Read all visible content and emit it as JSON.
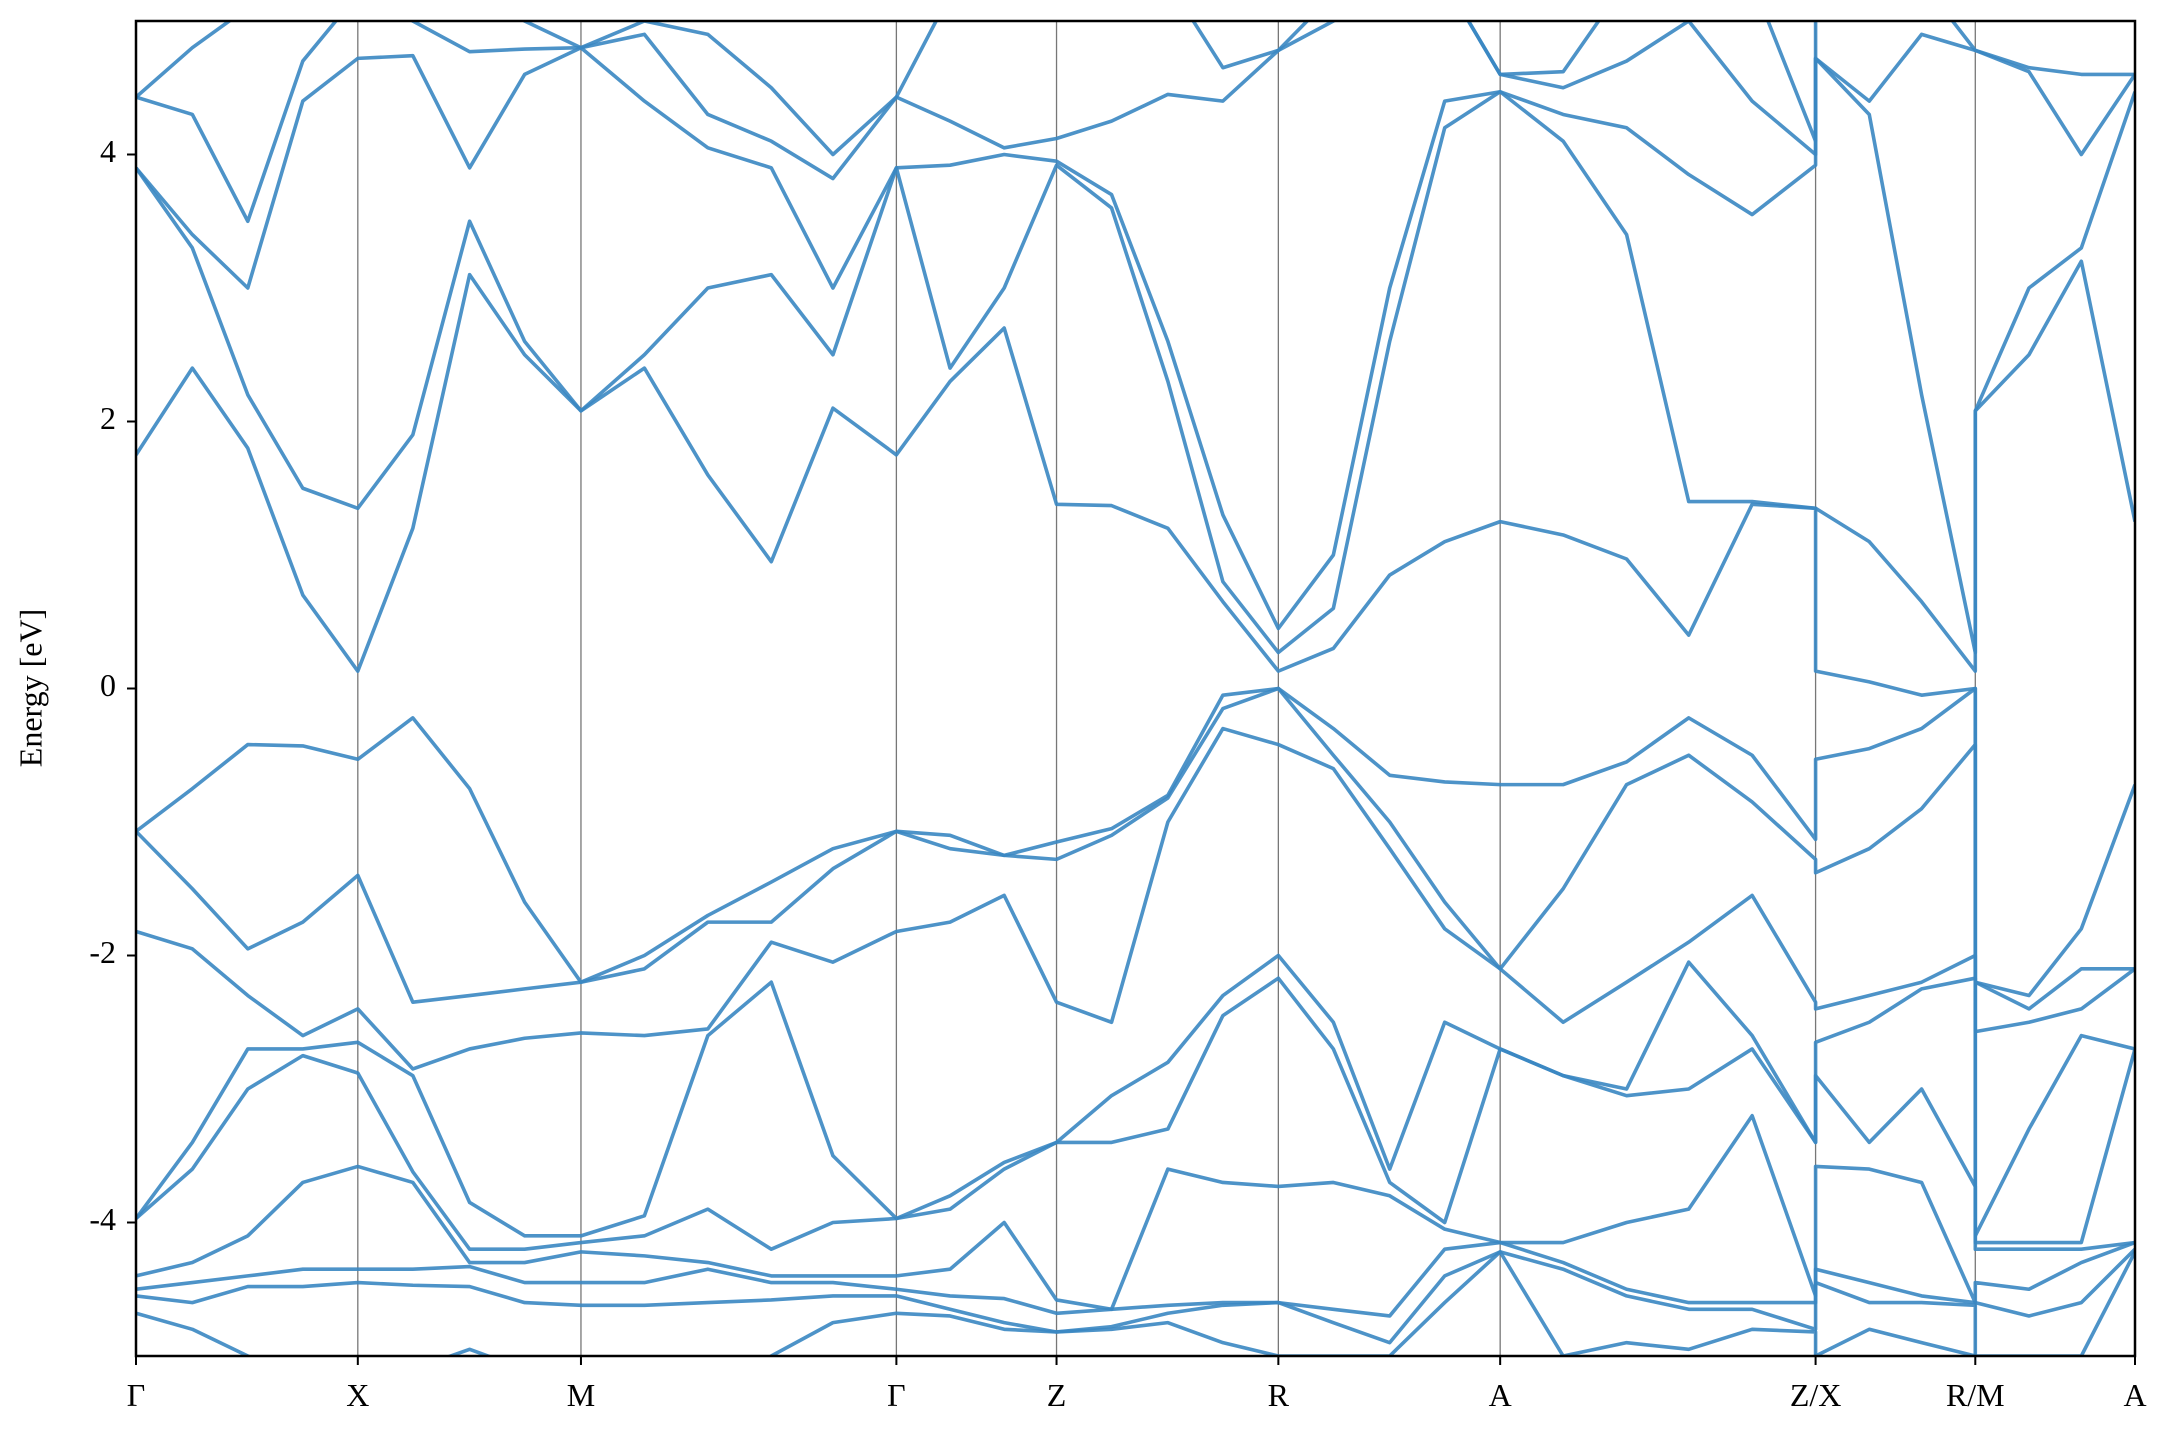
{
  "chart_data": {
    "type": "line",
    "ylabel": "Energy [eV]",
    "color": "#3a87c2",
    "xgrid": true,
    "xlim": [
      0,
      4.506
    ],
    "ylim": [
      -5,
      5
    ],
    "yticks": [
      -4,
      -2,
      0,
      2,
      4
    ],
    "xticks": [
      {
        "value": 0,
        "label": "Γ"
      },
      {
        "value": 0.5,
        "label": "X"
      },
      {
        "value": 1.003,
        "label": "M"
      },
      {
        "value": 1.714,
        "label": "Γ"
      },
      {
        "value": 2.075,
        "label": "Z"
      },
      {
        "value": 2.575,
        "label": "R"
      },
      {
        "value": 3.075,
        "label": "A"
      },
      {
        "value": 3.786,
        "label": "Z/X"
      },
      {
        "value": 4.146,
        "label": "R/M"
      },
      {
        "value": 4.506,
        "label": "A"
      }
    ],
    "x": [
      0,
      0.127,
      0.252,
      0.376,
      0.5,
      0.624,
      0.752,
      0.876,
      1.003,
      1.146,
      1.289,
      1.432,
      1.571,
      1.714,
      1.835,
      1.957,
      2.075,
      2.199,
      2.326,
      2.45,
      2.575,
      2.699,
      2.826,
      2.95,
      3.075,
      3.217,
      3.36,
      3.5,
      3.643,
      3.786,
      3.786,
      3.907,
      4.025,
      4.146,
      4.146,
      4.267,
      4.385,
      4.506
    ],
    "series": [
      {
        "values": [
          4.43,
          4.8,
          5.1,
          5.3,
          5.3,
          5.3,
          5.3,
          5.0,
          4.8,
          5.0,
          4.9,
          4.5,
          4.0,
          4.43,
          5.2,
          5.3,
          5.3,
          5.3,
          5.3,
          4.65,
          4.78,
          5.2,
          5.3,
          5.3,
          4.6,
          4.62,
          5.3,
          5.3,
          5.3,
          4.1,
          5.3,
          5.3,
          5.3,
          4.78,
          4.78,
          4.65,
          4.6,
          4.6
        ]
      },
      {
        "values": [
          4.43,
          4.3,
          3.5,
          4.7,
          5.2,
          5.0,
          4.77,
          4.79,
          4.8,
          4.9,
          4.3,
          4.1,
          3.82,
          4.43,
          4.25,
          4.05,
          4.12,
          4.25,
          4.45,
          4.4,
          4.78,
          5.0,
          5.2,
          5.3,
          4.6,
          4.5,
          4.7,
          5.0,
          4.4,
          4.0,
          4.72,
          4.4,
          4.9,
          4.78,
          4.78,
          4.62,
          4.0,
          4.6
        ]
      },
      {
        "values": [
          3.9,
          3.4,
          3.0,
          4.4,
          4.72,
          4.74,
          3.9,
          4.6,
          4.8,
          4.4,
          4.05,
          3.9,
          3.0,
          3.9,
          3.92,
          4.0,
          3.95,
          3.7,
          2.6,
          1.3,
          0.45,
          1.0,
          3.0,
          4.4,
          4.47,
          4.3,
          4.2,
          3.85,
          3.55,
          3.92,
          4.72,
          4.3,
          2.2,
          0.27,
          2.08,
          3.0,
          3.3,
          4.47
        ]
      },
      {
        "values": [
          3.9,
          3.3,
          2.2,
          1.5,
          1.35,
          1.9,
          3.5,
          2.6,
          2.08,
          2.5,
          3.0,
          3.1,
          2.5,
          3.9,
          2.4,
          3.0,
          3.92,
          3.6,
          2.3,
          0.8,
          0.27,
          0.6,
          2.6,
          4.2,
          4.47,
          4.1,
          3.4,
          1.4,
          1.4,
          1.35,
          1.35,
          1.1,
          0.65,
          0.13,
          2.08,
          2.5,
          3.2,
          1.25
        ]
      },
      {
        "values": [
          1.75,
          2.4,
          1.8,
          0.7,
          0.13,
          1.2,
          3.1,
          2.5,
          2.08,
          2.4,
          1.6,
          0.95,
          2.1,
          1.75,
          2.3,
          2.7,
          1.38,
          1.37,
          1.2,
          0.65,
          0.13,
          0.3,
          0.85,
          1.1,
          1.25,
          1.15,
          0.97,
          0.4,
          1.38,
          1.35,
          0.13,
          0.05,
          -0.05,
          0.0,
          -2.2,
          -2.3,
          -1.8,
          -0.72
        ]
      },
      {
        "values": [
          -1.07,
          -0.75,
          -0.42,
          -0.43,
          -0.53,
          -0.22,
          -0.75,
          -1.6,
          -2.2,
          -2.0,
          -1.7,
          -1.45,
          -1.2,
          -1.07,
          -1.1,
          -1.25,
          -1.15,
          -1.05,
          -0.8,
          -0.05,
          0.0,
          -0.3,
          -0.65,
          -0.7,
          -0.72,
          -0.72,
          -0.55,
          -0.22,
          -0.5,
          -1.13,
          -0.53,
          -0.45,
          -0.3,
          0.0,
          -2.2,
          -2.4,
          -2.1,
          -2.1
        ]
      },
      {
        "values": [
          -1.07,
          -1.5,
          -1.95,
          -1.75,
          -1.4,
          -2.35,
          -2.3,
          -2.25,
          -2.2,
          -2.1,
          -1.75,
          -1.75,
          -1.35,
          -1.07,
          -1.2,
          -1.25,
          -1.28,
          -1.1,
          -0.82,
          -0.15,
          0.0,
          -0.5,
          -1.0,
          -1.6,
          -2.1,
          -1.5,
          -0.72,
          -0.5,
          -0.85,
          -1.28,
          -1.38,
          -1.2,
          -0.9,
          -0.42,
          -2.57,
          -2.5,
          -2.4,
          -2.1
        ]
      },
      {
        "values": [
          -1.82,
          -1.95,
          -2.3,
          -2.6,
          -2.4,
          -2.85,
          -2.7,
          -2.62,
          -2.58,
          -2.6,
          -2.55,
          -1.9,
          -2.05,
          -1.82,
          -1.75,
          -1.55,
          -2.35,
          -2.5,
          -1.0,
          -0.3,
          -0.42,
          -0.6,
          -1.2,
          -1.8,
          -2.1,
          -2.5,
          -2.2,
          -1.9,
          -1.55,
          -2.35,
          -2.4,
          -2.3,
          -2.2,
          -2.0,
          -4.1,
          -3.3,
          -2.6,
          -2.7
        ]
      },
      {
        "values": [
          -3.97,
          -3.4,
          -2.7,
          -2.7,
          -2.65,
          -2.9,
          -3.85,
          -4.1,
          -4.1,
          -3.95,
          -2.6,
          -2.2,
          -3.5,
          -3.97,
          -3.8,
          -3.55,
          -3.4,
          -3.05,
          -2.8,
          -2.3,
          -2.0,
          -2.5,
          -3.6,
          -2.5,
          -2.7,
          -2.9,
          -3.0,
          -2.05,
          -2.6,
          -3.4,
          -2.65,
          -2.5,
          -2.25,
          -2.17,
          -4.15,
          -4.15,
          -4.15,
          -2.7
        ]
      },
      {
        "values": [
          -3.97,
          -3.6,
          -3.0,
          -2.75,
          -2.88,
          -3.62,
          -4.2,
          -4.2,
          -4.15,
          -4.1,
          -3.9,
          -4.2,
          -4.0,
          -3.97,
          -3.9,
          -3.6,
          -3.4,
          -3.4,
          -3.3,
          -2.45,
          -2.17,
          -2.7,
          -3.7,
          -4.0,
          -2.7,
          -2.9,
          -3.05,
          -3.0,
          -2.7,
          -3.4,
          -2.9,
          -3.4,
          -3.0,
          -3.73,
          -4.2,
          -4.2,
          -4.2,
          -4.15
        ]
      },
      {
        "values": [
          -4.4,
          -4.3,
          -4.1,
          -3.7,
          -3.58,
          -3.7,
          -4.3,
          -4.3,
          -4.22,
          -4.25,
          -4.3,
          -4.4,
          -4.4,
          -4.4,
          -4.35,
          -4.0,
          -4.58,
          -4.65,
          -3.6,
          -3.7,
          -3.73,
          -3.7,
          -3.8,
          -4.05,
          -4.15,
          -4.15,
          -4.0,
          -3.9,
          -3.2,
          -4.55,
          -3.58,
          -3.6,
          -3.7,
          -4.6,
          -4.45,
          -4.5,
          -4.3,
          -4.15
        ]
      },
      {
        "values": [
          -4.5,
          -4.45,
          -4.4,
          -4.35,
          -4.35,
          -4.35,
          -4.33,
          -4.45,
          -4.45,
          -4.45,
          -4.35,
          -4.45,
          -4.45,
          -4.5,
          -4.55,
          -4.57,
          -4.68,
          -4.65,
          -4.62,
          -4.6,
          -4.6,
          -4.65,
          -4.7,
          -4.2,
          -4.15,
          -4.3,
          -4.5,
          -4.6,
          -4.6,
          -4.6,
          -4.35,
          -4.45,
          -4.55,
          -4.6,
          -4.6,
          -4.7,
          -4.6,
          -4.2
        ]
      },
      {
        "values": [
          -4.55,
          -4.6,
          -4.48,
          -4.48,
          -4.45,
          -4.47,
          -4.48,
          -4.6,
          -4.62,
          -4.62,
          -4.6,
          -4.58,
          -4.55,
          -4.55,
          -4.65,
          -4.75,
          -4.82,
          -4.78,
          -4.68,
          -4.62,
          -4.6,
          -4.75,
          -4.9,
          -4.4,
          -4.22,
          -4.35,
          -4.55,
          -4.65,
          -4.65,
          -4.8,
          -4.45,
          -4.6,
          -4.6,
          -4.62,
          -5.0,
          -5.0,
          -5.0,
          -4.22
        ]
      },
      {
        "values": [
          -4.68,
          -4.8,
          -5.0,
          -5.2,
          -5.2,
          -5.1,
          -4.95,
          -5.1,
          -5.2,
          -5.3,
          -5.3,
          -5.0,
          -4.75,
          -4.68,
          -4.7,
          -4.8,
          -4.82,
          -4.8,
          -4.75,
          -4.9,
          -5.0,
          -5.0,
          -5.0,
          -4.6,
          -4.22,
          -5.0,
          -4.9,
          -4.95,
          -4.8,
          -4.82,
          -5.0,
          -4.8,
          -4.9,
          -5.0,
          -5.2,
          -5.2,
          -5.2,
          -5.0
        ]
      }
    ]
  }
}
